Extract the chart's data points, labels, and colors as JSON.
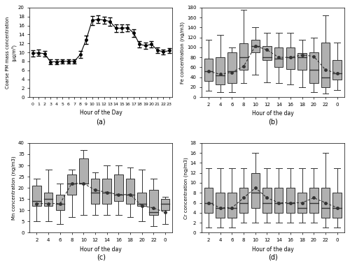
{
  "panel_a": {
    "hours": [
      0,
      1,
      2,
      3,
      4,
      5,
      6,
      7,
      8,
      9,
      10,
      11,
      12,
      13,
      14,
      15,
      16,
      17,
      18,
      19,
      20,
      21,
      22,
      23
    ],
    "means": [
      9.8,
      9.9,
      9.7,
      7.9,
      7.9,
      8.0,
      8.0,
      8.0,
      9.5,
      12.8,
      17.1,
      17.4,
      17.2,
      16.9,
      15.4,
      15.4,
      15.5,
      14.3,
      11.8,
      11.5,
      11.8,
      10.5,
      10.1,
      10.4
    ],
    "errors": [
      0.7,
      0.7,
      0.6,
      0.5,
      0.5,
      0.5,
      0.5,
      0.5,
      0.8,
      1.0,
      1.0,
      0.8,
      0.8,
      0.9,
      0.8,
      0.8,
      0.8,
      0.9,
      0.7,
      0.7,
      0.7,
      0.6,
      0.6,
      0.6
    ],
    "ylabel": "Coarse PM mass concentration\n(μg/m³)",
    "xlabel": "Hour of the Day",
    "ylim": [
      0,
      20
    ],
    "yticks": [
      0,
      2,
      4,
      6,
      8,
      10,
      12,
      14,
      16,
      18,
      20
    ],
    "label": "(a)"
  },
  "panel_b": {
    "hours": [
      2,
      4,
      6,
      8,
      10,
      12,
      14,
      16,
      18,
      20,
      22,
      0
    ],
    "q1": [
      32,
      25,
      28,
      55,
      90,
      75,
      60,
      57,
      55,
      28,
      20,
      35
    ],
    "median": [
      52,
      44,
      52,
      80,
      103,
      80,
      78,
      80,
      80,
      55,
      40,
      48
    ],
    "q3": [
      78,
      80,
      90,
      108,
      115,
      103,
      100,
      100,
      88,
      90,
      110,
      75
    ],
    "p5": [
      13,
      10,
      10,
      28,
      45,
      30,
      28,
      25,
      20,
      10,
      8,
      15
    ],
    "p95": [
      115,
      125,
      100,
      175,
      140,
      130,
      130,
      130,
      115,
      120,
      165,
      110
    ],
    "means": [
      52,
      46,
      50,
      62,
      103,
      95,
      80,
      80,
      85,
      82,
      55,
      48
    ],
    "ylabel": "Fe concentration (ng/m3)",
    "xlabel": "Hour of the day",
    "ylim": [
      0,
      180
    ],
    "yticks": [
      0,
      20,
      40,
      60,
      80,
      100,
      120,
      140,
      160,
      180
    ],
    "label": "(b)"
  },
  "panel_c": {
    "hours": [
      2,
      4,
      6,
      8,
      10,
      12,
      14,
      16,
      18,
      20,
      22,
      0
    ],
    "q1": [
      12,
      12,
      10,
      17,
      22,
      13,
      13,
      14,
      13,
      12,
      8,
      10
    ],
    "median": [
      14,
      15,
      13,
      22,
      22,
      18,
      18,
      17,
      17,
      13,
      9,
      13
    ],
    "q3": [
      21,
      18,
      17,
      26,
      33,
      24,
      24,
      26,
      24,
      18,
      19,
      15
    ],
    "p5": [
      5,
      5,
      4,
      7,
      8,
      8,
      8,
      8,
      7,
      5,
      3,
      4
    ],
    "p95": [
      24,
      28,
      22,
      28,
      37,
      27,
      30,
      30,
      29,
      28,
      24,
      16
    ],
    "means": [
      13,
      13,
      13,
      22,
      22,
      19,
      18,
      17,
      17,
      12,
      11,
      9
    ],
    "ylabel": "Mn concentration (ng/m3)",
    "xlabel": "Hour of the day",
    "ylim": [
      0,
      40
    ],
    "yticks": [
      0,
      5,
      10,
      15,
      20,
      25,
      30,
      35,
      40
    ],
    "label": "(c)"
  },
  "panel_d": {
    "hours": [
      2,
      4,
      6,
      8,
      10,
      12,
      14,
      16,
      18,
      20,
      22,
      0
    ],
    "q1": [
      4,
      3,
      3,
      4,
      5,
      4,
      4,
      4,
      4,
      4,
      3,
      3
    ],
    "median": [
      6,
      5,
      5,
      6,
      8,
      6,
      6,
      6,
      5,
      6,
      5,
      5
    ],
    "q3": [
      9,
      8,
      8,
      9,
      12,
      9,
      9,
      9,
      8,
      9,
      9,
      8
    ],
    "p5": [
      1,
      1,
      1,
      2,
      2,
      2,
      2,
      2,
      2,
      2,
      1,
      1
    ],
    "p95": [
      13,
      13,
      13,
      13,
      16,
      13,
      13,
      13,
      13,
      13,
      16,
      13
    ],
    "means": [
      6,
      5,
      5,
      7,
      9,
      7,
      6,
      6,
      6,
      7,
      6,
      5
    ],
    "ylabel": "Cr concentration (ng/m3)",
    "xlabel": "Hour of the day",
    "ylim": [
      0,
      18
    ],
    "yticks": [
      0,
      2,
      4,
      6,
      8,
      10,
      12,
      14,
      16,
      18
    ],
    "label": "(d)"
  },
  "box_color": "#b0b0b0",
  "line_color": "#333333",
  "bg_color": "#ffffff"
}
